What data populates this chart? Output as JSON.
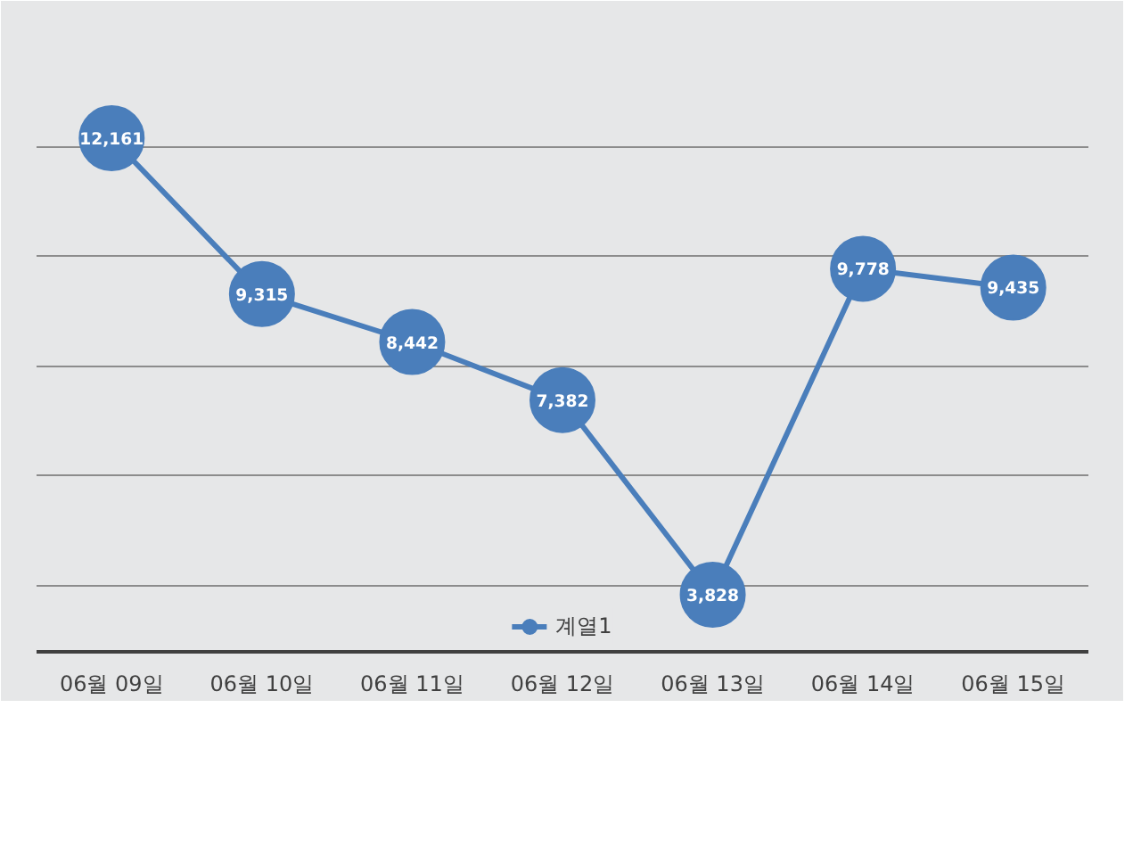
{
  "chart_data": {
    "type": "line",
    "categories": [
      "06월 09일",
      "06월 10일",
      "06월 11일",
      "06월 12일",
      "06월 13일",
      "06월 14일",
      "06월 15일"
    ],
    "series": [
      {
        "name": "계열1",
        "color": "#4a7ebb",
        "values": [
          12161,
          9315,
          8442,
          7382,
          3828,
          9778,
          9435
        ],
        "value_labels": [
          "12,161",
          "9,315",
          "8,442",
          "7,382",
          "3,828",
          "9,778",
          "9,435"
        ]
      }
    ],
    "tick_labels": "x",
    "grid": "y",
    "legend": "bottom",
    "marker": "circle",
    "line_style": "solid"
  }
}
